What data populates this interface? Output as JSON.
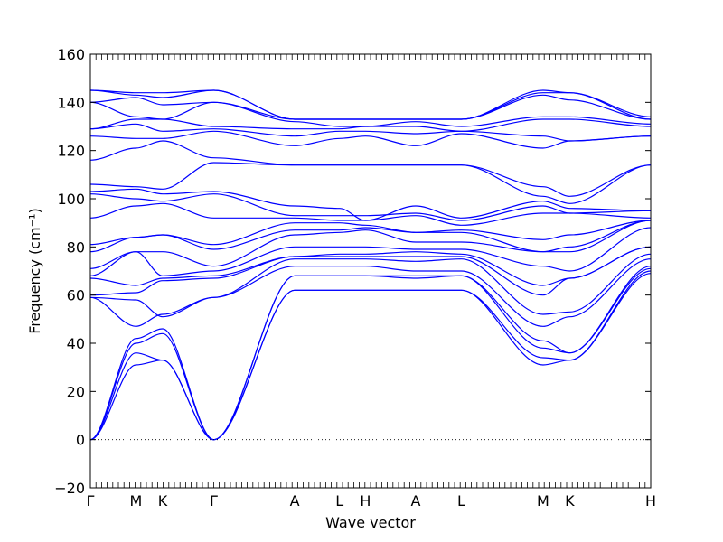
{
  "chart_data": {
    "type": "line",
    "xlabel": "Wave vector",
    "ylabel": "Frequency (cm⁻¹)",
    "ylim": [
      -20,
      160
    ],
    "yticks": [
      -20,
      0,
      20,
      40,
      60,
      80,
      100,
      120,
      140,
      160
    ],
    "grid": false,
    "zero_line": "dotted",
    "series_color": "#0000ff",
    "x_points": [
      {
        "label": "Γ",
        "x": 0.0
      },
      {
        "label": "M",
        "x": 0.58
      },
      {
        "label": "K",
        "x": 0.92
      },
      {
        "label": "Γ",
        "x": 1.57
      },
      {
        "label": "A",
        "x": 2.6
      },
      {
        "label": "L",
        "x": 3.17
      },
      {
        "label": "H",
        "x": 3.5
      },
      {
        "label": "A",
        "x": 4.14
      },
      {
        "label": "L",
        "x": 4.72
      },
      {
        "label": "M",
        "x": 5.76
      },
      {
        "label": "K",
        "x": 6.1
      },
      {
        "label": "H",
        "x": 7.13
      }
    ],
    "bands": [
      [
        0,
        31,
        33,
        0,
        62,
        62,
        62,
        62,
        62,
        31,
        33,
        69
      ],
      [
        0,
        36,
        33,
        0,
        62,
        62,
        62,
        62,
        62,
        34,
        33,
        70
      ],
      [
        0,
        40,
        44,
        0,
        68,
        68,
        68,
        67,
        68,
        38,
        36,
        71
      ],
      [
        0,
        42,
        46,
        0,
        68,
        68,
        68,
        68,
        68,
        41,
        36,
        72
      ],
      [
        59,
        47,
        52,
        59,
        72,
        72,
        72,
        70,
        70,
        47,
        51,
        75
      ],
      [
        59,
        58,
        51,
        59,
        75,
        75,
        75,
        74,
        75,
        52,
        53,
        77
      ],
      [
        60,
        61,
        66,
        67,
        76,
        76,
        76,
        76,
        76,
        60,
        67,
        80
      ],
      [
        67,
        64,
        67,
        68,
        76,
        77,
        77,
        78,
        77,
        64,
        67,
        80
      ],
      [
        68,
        78,
        68,
        70,
        80,
        80,
        80,
        79,
        79,
        72,
        70,
        88
      ],
      [
        71,
        78,
        78,
        72,
        85,
        86,
        87,
        82,
        82,
        78,
        78,
        91
      ],
      [
        78,
        84,
        85,
        79,
        87,
        87,
        88,
        86,
        86,
        78,
        80,
        91
      ],
      [
        81,
        84,
        85,
        81,
        90,
        90,
        89,
        86,
        87,
        83,
        85,
        91
      ],
      [
        92,
        97,
        98,
        92,
        92,
        91,
        91,
        93,
        89,
        94,
        94,
        92
      ],
      [
        102,
        100,
        99,
        102,
        93,
        93,
        93,
        94,
        91,
        97,
        94,
        95
      ],
      [
        103,
        104,
        102,
        103,
        97,
        96,
        91,
        97,
        92,
        99,
        96,
        95
      ],
      [
        106,
        105,
        104,
        115,
        114,
        114,
        114,
        114,
        114,
        101,
        98,
        114
      ],
      [
        116,
        121,
        124,
        117,
        114,
        114,
        114,
        114,
        114,
        105,
        101,
        114
      ],
      [
        126,
        125,
        125,
        128,
        122,
        125,
        126,
        122,
        127,
        121,
        124,
        126
      ],
      [
        129,
        131,
        128,
        129,
        126,
        128,
        128,
        127,
        128,
        126,
        124,
        126
      ],
      [
        129,
        133,
        133,
        130,
        129,
        129,
        130,
        130,
        128,
        133,
        133,
        130
      ],
      [
        140,
        134,
        133,
        140,
        132,
        130,
        130,
        132,
        130,
        134,
        134,
        131
      ],
      [
        140,
        142,
        139,
        140,
        133,
        133,
        133,
        133,
        133,
        143,
        141,
        133
      ],
      [
        145,
        143,
        142,
        145,
        133,
        133,
        133,
        133,
        133,
        144,
        144,
        133
      ],
      [
        145,
        144,
        144,
        145,
        133,
        133,
        133,
        133,
        133,
        145,
        144,
        134
      ]
    ]
  }
}
